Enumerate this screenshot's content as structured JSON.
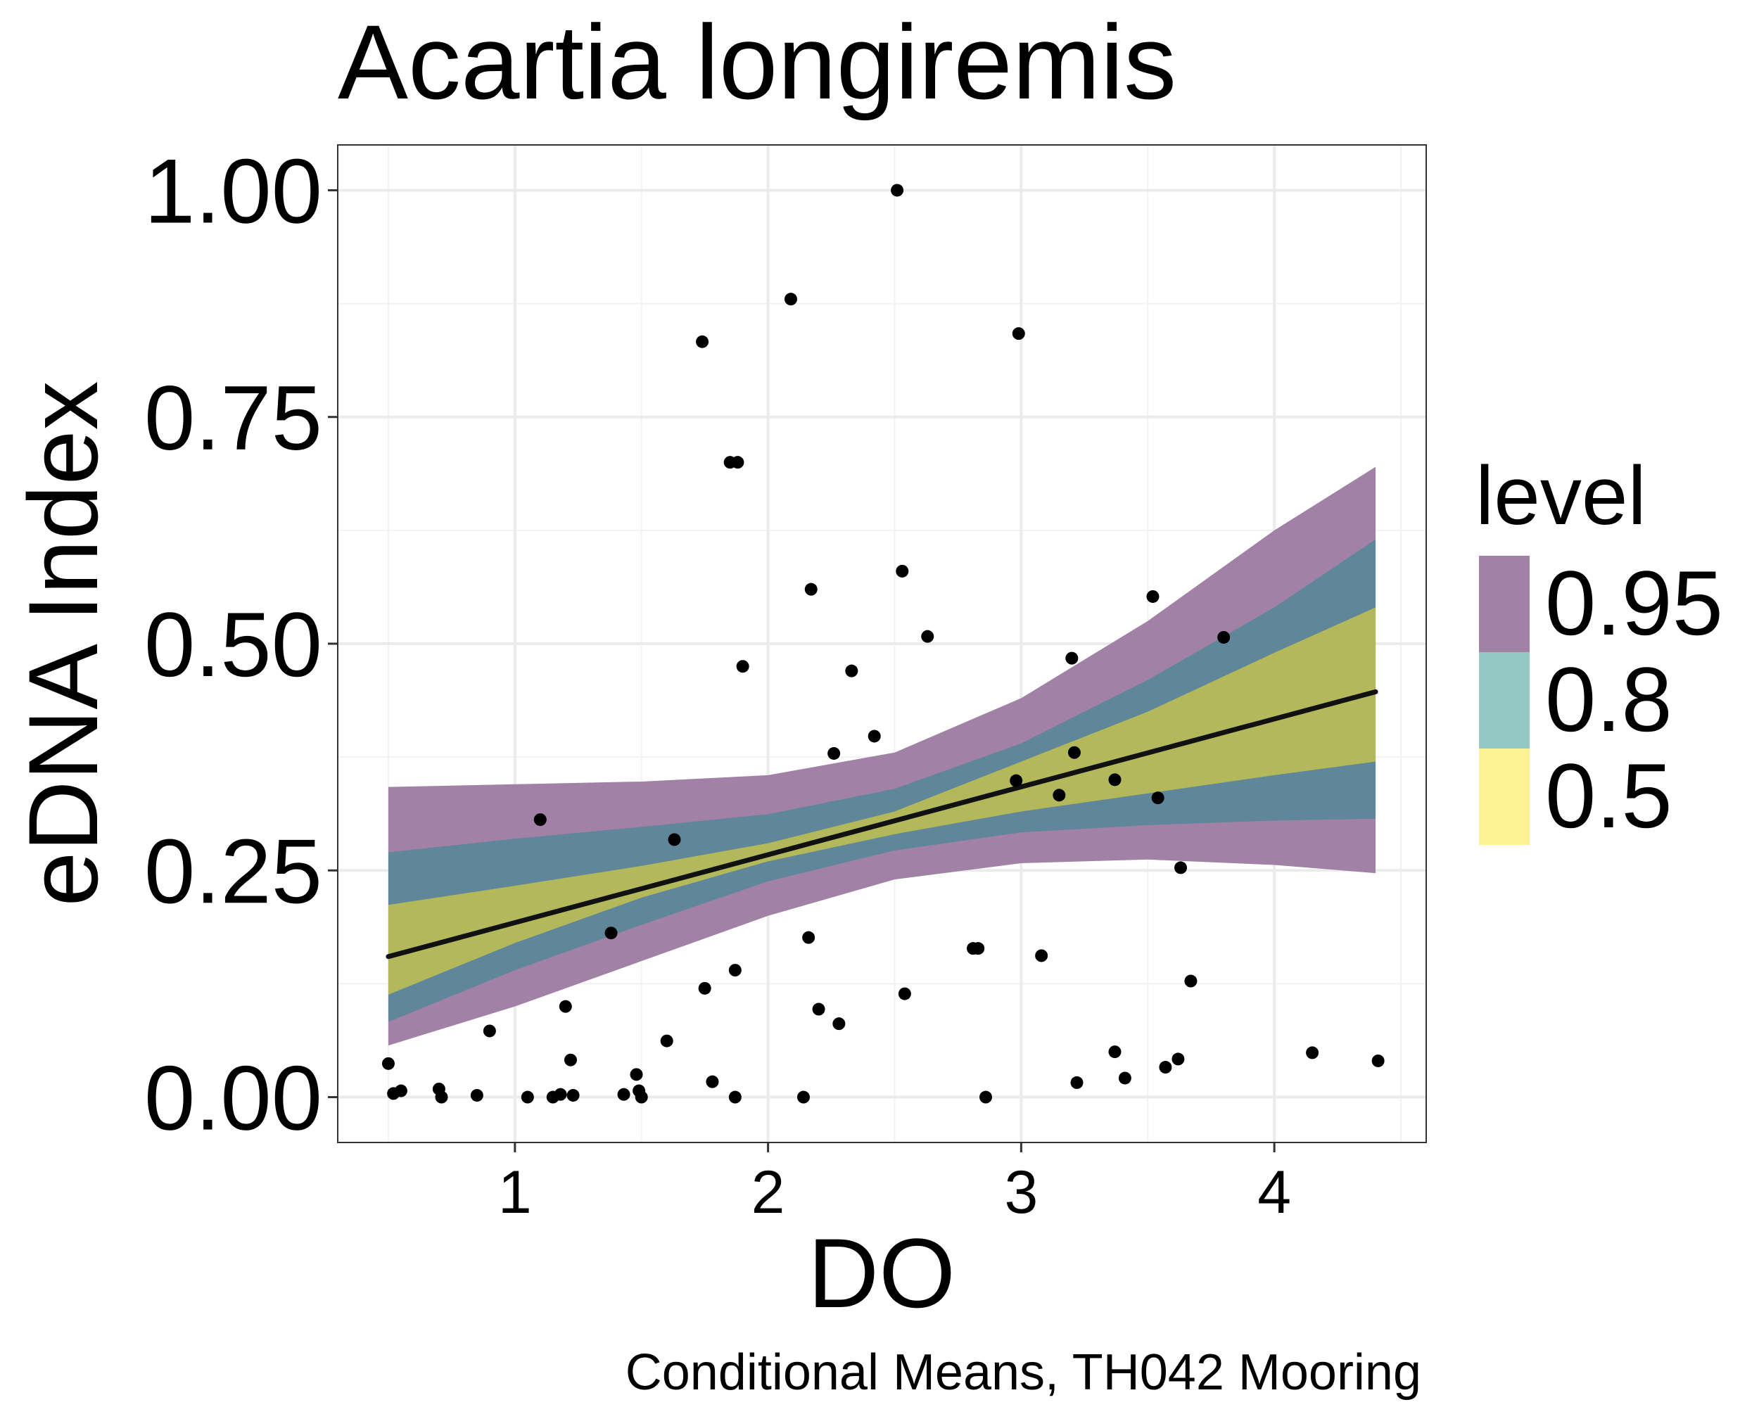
{
  "chart_data": {
    "type": "scatter",
    "title": "Acartia longiremis",
    "xlabel": "DO",
    "ylabel": "eDNA Index",
    "caption": "Conditional Means, TH042 Mooring",
    "xlim": [
      0.3,
      4.6
    ],
    "ylim": [
      -0.05,
      1.05
    ],
    "x_ticks": [
      1,
      2,
      3,
      4
    ],
    "x_tick_labels": [
      "1",
      "2",
      "3",
      "4"
    ],
    "y_ticks": [
      0,
      0.25,
      0.5,
      0.75,
      1
    ],
    "y_tick_labels": [
      "0.00",
      "0.25",
      "0.50",
      "0.75",
      "1.00"
    ],
    "grid": true,
    "legend": {
      "title": "level",
      "position": "right",
      "entries": [
        {
          "label": "0.95",
          "color": "#a181a6"
        },
        {
          "label": "0.8",
          "color": "#93c8c3"
        },
        {
          "label": "0.5",
          "color": "#fdf195"
        }
      ]
    },
    "ribbon_colors": {
      "0.95": "#a181a6",
      "0.8": "#5f8699",
      "0.5": "#b3b95b"
    },
    "line_color": "#111111",
    "line": {
      "x": [
        0.5,
        4.4
      ],
      "y": [
        0.155,
        0.447
      ]
    },
    "ribbons": [
      {
        "level": "0.95",
        "x": [
          0.5,
          1.0,
          1.5,
          2.0,
          2.5,
          3.0,
          3.5,
          4.0,
          4.4
        ],
        "lower": [
          0.057,
          0.1,
          0.15,
          0.2,
          0.24,
          0.258,
          0.262,
          0.256,
          0.247
        ],
        "upper": [
          0.342,
          0.345,
          0.348,
          0.355,
          0.38,
          0.44,
          0.525,
          0.625,
          0.695
        ]
      },
      {
        "level": "0.8",
        "x": [
          0.5,
          1.0,
          1.5,
          2.0,
          2.5,
          3.0,
          3.5,
          4.0,
          4.4
        ],
        "lower": [
          0.083,
          0.14,
          0.19,
          0.238,
          0.272,
          0.292,
          0.3,
          0.305,
          0.307
        ],
        "upper": [
          0.27,
          0.285,
          0.298,
          0.312,
          0.34,
          0.39,
          0.46,
          0.54,
          0.615
        ]
      },
      {
        "level": "0.5",
        "x": [
          0.5,
          1.0,
          1.5,
          2.0,
          2.5,
          3.0,
          3.5,
          4.0,
          4.4
        ],
        "lower": [
          0.113,
          0.17,
          0.22,
          0.26,
          0.29,
          0.315,
          0.335,
          0.355,
          0.37
        ],
        "upper": [
          0.212,
          0.233,
          0.255,
          0.28,
          0.315,
          0.37,
          0.425,
          0.49,
          0.54
        ]
      }
    ],
    "points": {
      "x": [
        0.5,
        0.52,
        0.55,
        0.7,
        0.71,
        0.85,
        0.9,
        1.05,
        1.1,
        1.15,
        1.18,
        1.2,
        1.22,
        1.23,
        1.38,
        1.43,
        1.48,
        1.49,
        1.5,
        1.6,
        1.63,
        1.74,
        1.75,
        1.78,
        1.85,
        1.87,
        1.87,
        1.88,
        1.9,
        2.09,
        2.14,
        2.16,
        2.17,
        2.2,
        2.26,
        2.28,
        2.33,
        2.42,
        2.51,
        2.53,
        2.54,
        2.63,
        2.81,
        2.83,
        2.86,
        2.98,
        2.99,
        3.08,
        3.15,
        3.2,
        3.21,
        3.22,
        3.37,
        3.37,
        3.41,
        3.52,
        3.54,
        3.57,
        3.62,
        3.63,
        3.67,
        3.8,
        4.15,
        4.41
      ],
      "y": [
        0.037,
        0.004,
        0.007,
        0.009,
        0.0,
        0.002,
        0.073,
        0.0,
        0.306,
        0.0,
        0.003,
        0.1,
        0.041,
        0.002,
        0.181,
        0.003,
        0.025,
        0.007,
        0.0,
        0.062,
        0.284,
        0.833,
        0.12,
        0.017,
        0.7,
        0.0,
        0.14,
        0.7,
        0.475,
        0.88,
        0.0,
        0.176,
        0.56,
        0.097,
        0.379,
        0.081,
        0.47,
        0.398,
        1.0,
        0.58,
        0.114,
        0.508,
        0.164,
        0.164,
        0.0,
        0.349,
        0.842,
        0.156,
        0.333,
        0.484,
        0.38,
        0.016,
        0.35,
        0.05,
        0.021,
        0.552,
        0.33,
        0.033,
        0.042,
        0.253,
        0.128,
        0.507,
        0.049,
        0.04
      ]
    }
  }
}
